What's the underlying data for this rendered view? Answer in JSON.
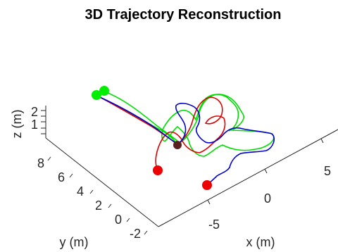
{
  "chart_data": {
    "type": "line3d",
    "title": "3D Trajectory Reconstruction",
    "xlabel": "x (m)",
    "ylabel": "y (m)",
    "zlabel": "z (m)",
    "x_ticks": [
      "-5",
      "0",
      "5"
    ],
    "y_ticks": [
      "-2",
      "0",
      "2",
      "4",
      "6",
      "8"
    ],
    "z_ticks": [
      "1",
      "2"
    ],
    "grid": false,
    "legend": "none",
    "series": [
      {
        "color": "#00dd00",
        "marker": "start",
        "marker_color": "#00ee00"
      },
      {
        "color": "#dd0000",
        "marker": "end",
        "marker_color": "#ee0000"
      },
      {
        "color": "#0000cc",
        "marker": "end",
        "marker_color": "#ee0000"
      }
    ]
  }
}
